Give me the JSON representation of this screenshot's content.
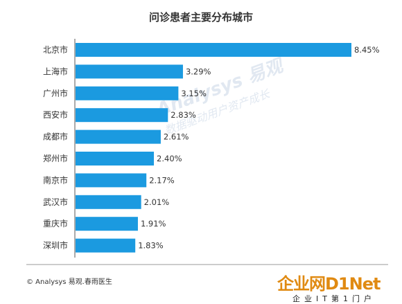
{
  "chart_data": {
    "type": "bar",
    "orientation": "horizontal",
    "title": "问诊患者主要分布城市",
    "categories": [
      "北京市",
      "上海市",
      "广州市",
      "西安市",
      "成都市",
      "郑州市",
      "南京市",
      "武汉市",
      "重庆市",
      "深圳市"
    ],
    "values": [
      8.45,
      3.29,
      3.15,
      2.83,
      2.61,
      2.4,
      2.17,
      2.01,
      1.91,
      1.83
    ],
    "value_labels": [
      "8.45%",
      "3.29%",
      "3.15%",
      "2.83%",
      "2.61%",
      "2.40%",
      "2.17%",
      "2.01%",
      "1.91%",
      "1.83%"
    ],
    "unit": "%",
    "xlim": [
      0,
      8.45
    ],
    "bar_color": "#1b9ae0",
    "grid": false,
    "legend": "none"
  },
  "footer": {
    "source": "© Analysys 易观.春雨医生"
  },
  "watermark": {
    "text": "Analysys 易观",
    "subtext": "数据驱动用户资产成长"
  },
  "brand": {
    "main": "企业网D1Net",
    "sub": "企业IT第1门户"
  },
  "colors": {
    "bar": "#1b9ae0",
    "axis": "#555555",
    "text": "#333333"
  }
}
